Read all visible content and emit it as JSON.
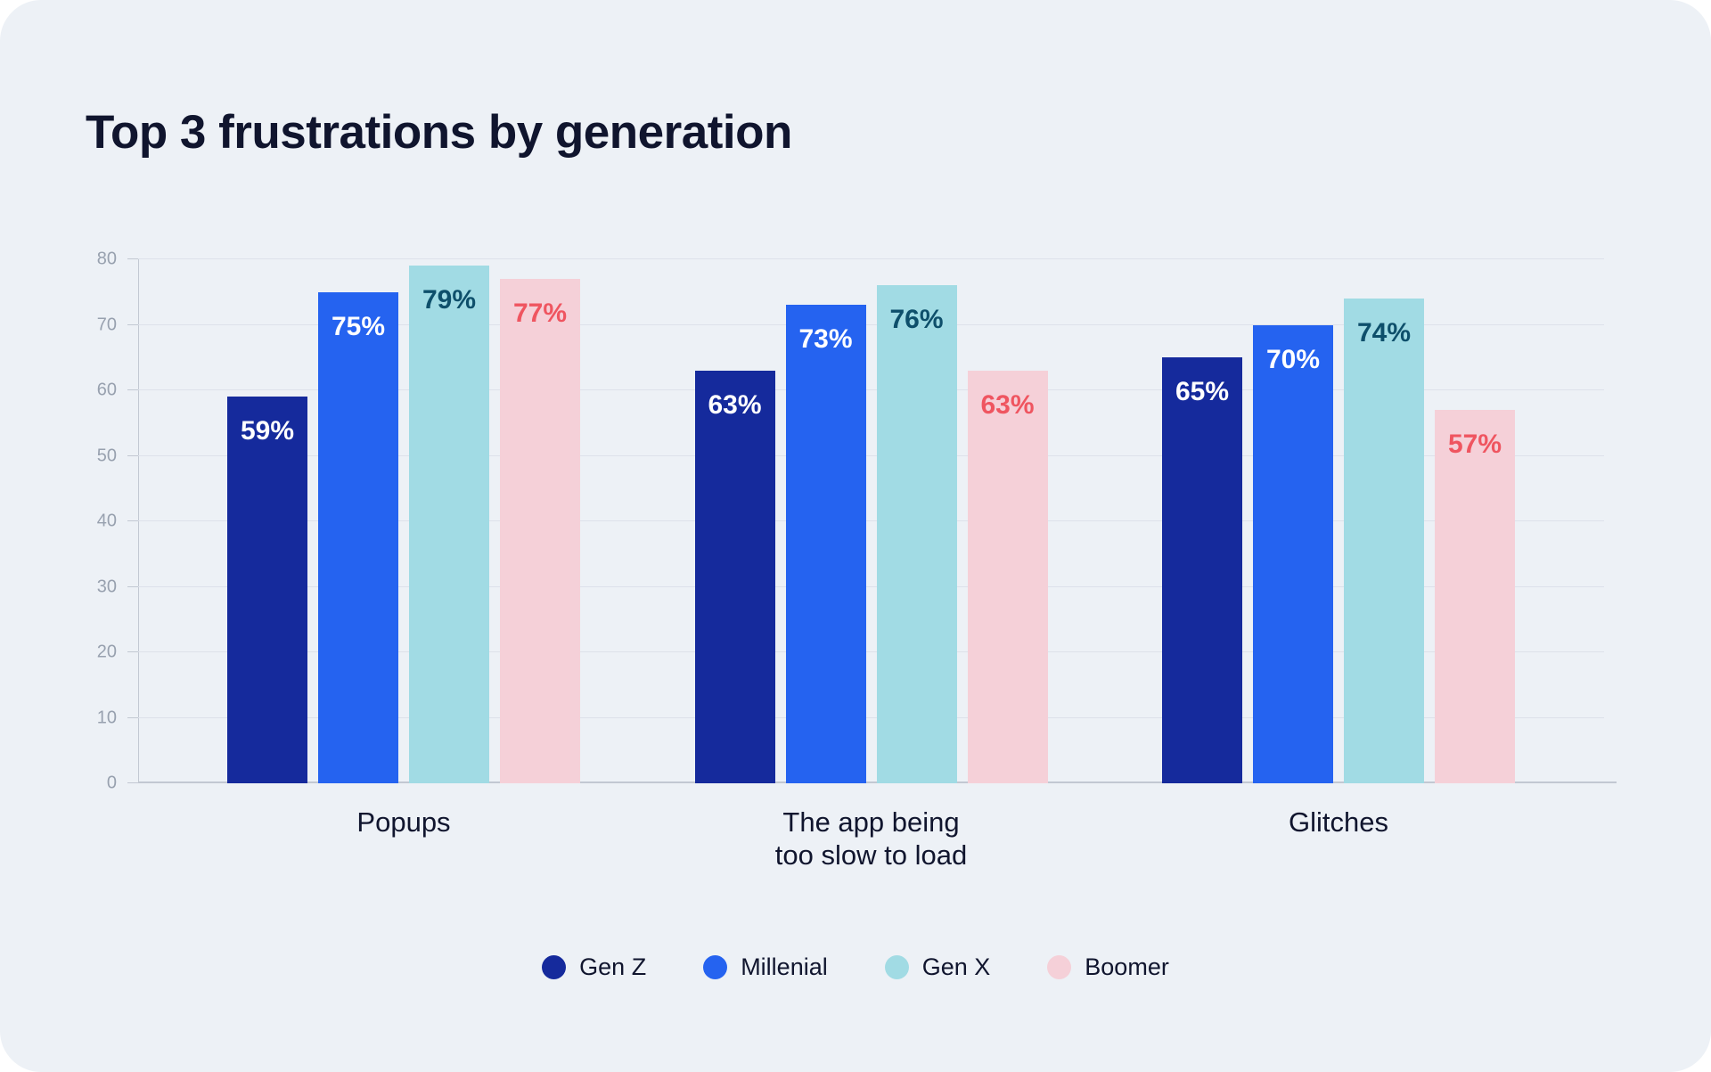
{
  "title": "Top 3 frustrations by generation",
  "colors": {
    "card_bg": "#edf1f6",
    "text_dark": "#10152e",
    "text_muted": "#98a1af",
    "grid_color": "#dde1ea",
    "axis_color": "#c2c8d2"
  },
  "chart_data": {
    "type": "bar",
    "title": "Top 3 frustrations by generation",
    "categories": [
      "Popups",
      "The app being\ntoo slow to load",
      "Glitches"
    ],
    "series": [
      {
        "name": "Gen Z",
        "color": "#152a9c",
        "label_color": "#ffffff",
        "values": [
          59,
          63,
          65
        ]
      },
      {
        "name": "Millenial",
        "color": "#2563f0",
        "label_color": "#ffffff",
        "values": [
          75,
          73,
          70
        ]
      },
      {
        "name": "Gen X",
        "color": "#a1dbe4",
        "label_color": "#0e4f6b",
        "values": [
          79,
          76,
          74
        ]
      },
      {
        "name": "Boomer",
        "color": "#f5d0d8",
        "label_color": "#ef5560",
        "values": [
          77,
          63,
          57
        ]
      }
    ],
    "xlabel": "",
    "ylabel": "",
    "ylim": [
      0,
      80
    ],
    "yticks": [
      0,
      10,
      20,
      30,
      40,
      50,
      60,
      70,
      80
    ],
    "value_suffix": "%",
    "grid": true,
    "legend_position": "bottom"
  }
}
